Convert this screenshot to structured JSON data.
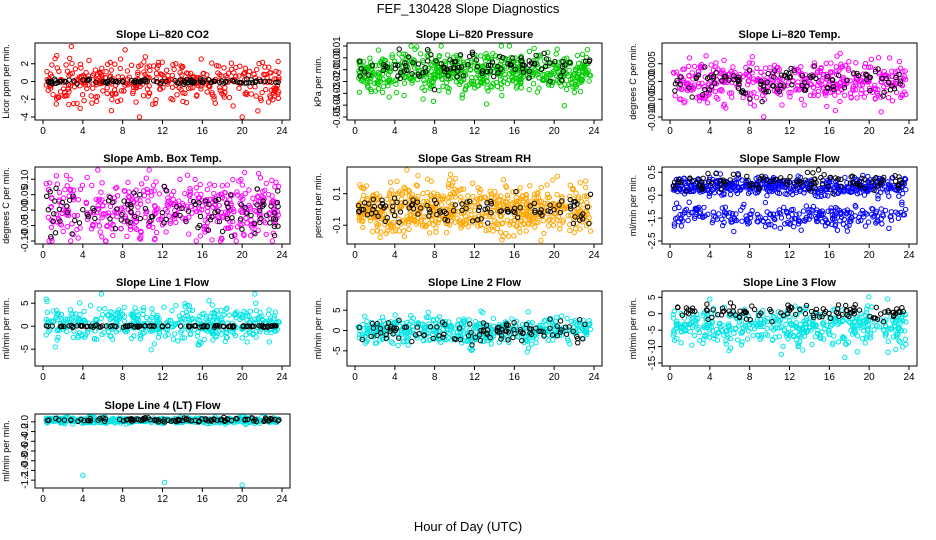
{
  "figure": {
    "title": "FEF_130428  Slope Diagnostics",
    "xlabel": "Hour of Day (UTC)"
  },
  "colors": {
    "black": "#000000",
    "red": "#ff0000",
    "green": "#00cc00",
    "magenta": "#ff00ff",
    "orange": "#ffa500",
    "blue": "#0000ff",
    "cyan": "#00e5e5"
  },
  "chart_data": [
    {
      "type": "scatter",
      "title": "Slope Li–820 CO2",
      "ylabel": "Licor ppm per min.",
      "xlim": [
        0,
        24
      ],
      "ylim": [
        -4,
        4
      ],
      "xticks": [
        "0",
        "4",
        "8",
        "12",
        "16",
        "20",
        "24"
      ],
      "yticks": [
        "-4",
        "-2",
        "0",
        "2"
      ],
      "series": [
        {
          "color": "red",
          "center": 0.0,
          "spread": 1.2,
          "count": 380
        },
        {
          "color": "black",
          "center": 0.0,
          "spread": 0.12,
          "count": 110
        }
      ]
    },
    {
      "type": "scatter",
      "title": "Slope Li–820 Pressure",
      "ylabel": "kPa per min.",
      "xlim": [
        0,
        24
      ],
      "ylim": [
        -0.05,
        0.01
      ],
      "xticks": [
        "0",
        "4",
        "8",
        "12",
        "16",
        "20",
        "24"
      ],
      "yticks": [
        "-0.05",
        "-0.04",
        "-0.03",
        "-0.02",
        "-0.01",
        "0.00",
        "0.01"
      ],
      "series": [
        {
          "color": "green",
          "center": -0.012,
          "spread": 0.009,
          "count": 600
        },
        {
          "color": "black",
          "center": -0.008,
          "spread": 0.006,
          "count": 110
        }
      ]
    },
    {
      "type": "scatter",
      "title": "Slope Li–820 Temp.",
      "ylabel": "degrees C per min.",
      "xlim": [
        0,
        24
      ],
      "ylim": [
        -0.01,
        0.01
      ],
      "xticks": [
        "0",
        "4",
        "8",
        "12",
        "16",
        "20",
        "24"
      ],
      "yticks": [
        "-0.010",
        "-0.005",
        "0.000",
        "0.005"
      ],
      "series": [
        {
          "color": "magenta",
          "center": 0.0,
          "spread": 0.003,
          "count": 450
        },
        {
          "color": "black",
          "center": 0.0,
          "spread": 0.002,
          "count": 110
        }
      ]
    },
    {
      "type": "scatter",
      "title": "Slope Amb. Box Temp.",
      "ylabel": "degrees C per min.",
      "xlim": [
        0,
        24
      ],
      "ylim": [
        -0.1,
        0.13
      ],
      "xticks": [
        "0",
        "4",
        "8",
        "12",
        "16",
        "20",
        "24"
      ],
      "yticks": [
        "-0.10",
        "-0.05",
        "0.00",
        "0.05",
        "0.10"
      ],
      "series": [
        {
          "color": "magenta",
          "center": 0.0,
          "spread": 0.05,
          "count": 450
        },
        {
          "color": "black",
          "center": 0.0,
          "spread": 0.035,
          "count": 110
        }
      ]
    },
    {
      "type": "scatter",
      "title": "Slope Gas Stream RH",
      "ylabel": "percent per min.",
      "xlim": [
        0,
        24
      ],
      "ylim": [
        -0.2,
        0.25
      ],
      "xticks": [
        "0",
        "4",
        "8",
        "12",
        "16",
        "20",
        "24"
      ],
      "yticks": [
        "-0.1",
        "0.1"
      ],
      "series": [
        {
          "color": "orange",
          "center": 0.0,
          "spread": 0.08,
          "count": 650
        },
        {
          "color": "black",
          "center": 0.0,
          "spread": 0.04,
          "count": 110
        }
      ]
    },
    {
      "type": "scatter",
      "title": "Slope Sample Flow",
      "ylabel": "ml/min per min.",
      "xlim": [
        0,
        24
      ],
      "ylim": [
        -2.5,
        0.6
      ],
      "xticks": [
        "0",
        "4",
        "8",
        "12",
        "16",
        "20",
        "24"
      ],
      "yticks": [
        "-2.5",
        "-1.5",
        "-0.5",
        "0.5"
      ],
      "series": [
        {
          "color": "blue",
          "center": -0.1,
          "spread": 0.2,
          "count": 450
        },
        {
          "color": "blue",
          "center": -1.4,
          "spread": 0.25,
          "count": 250
        },
        {
          "color": "black",
          "center": 0.1,
          "spread": 0.2,
          "count": 110
        }
      ]
    },
    {
      "type": "scatter",
      "title": "Slope Line 1 Flow",
      "ylabel": "ml/min per min.",
      "xlim": [
        0,
        24
      ],
      "ylim": [
        -8,
        7
      ],
      "xticks": [
        "0",
        "4",
        "8",
        "12",
        "16",
        "20",
        "24"
      ],
      "yticks": [
        "-5",
        "0",
        "5"
      ],
      "series": [
        {
          "color": "cyan",
          "center": 0.5,
          "spread": 1.8,
          "count": 450
        },
        {
          "color": "black",
          "center": 0.0,
          "spread": 0.1,
          "count": 110
        }
      ]
    },
    {
      "type": "scatter",
      "title": "Slope Line 2 Flow",
      "ylabel": "ml/min per min.",
      "xlim": [
        0,
        24
      ],
      "ylim": [
        -8,
        9
      ],
      "xticks": [
        "0",
        "4",
        "8",
        "12",
        "16",
        "20",
        "24"
      ],
      "yticks": [
        "-5",
        "0",
        "5"
      ],
      "series": [
        {
          "color": "cyan",
          "center": 0.0,
          "spread": 1.6,
          "count": 450
        },
        {
          "color": "black",
          "center": 0.0,
          "spread": 1.6,
          "count": 110
        }
      ]
    },
    {
      "type": "scatter",
      "title": "Slope Line 3 Flow",
      "ylabel": "ml/min per min.",
      "xlim": [
        0,
        24
      ],
      "ylim": [
        -15,
        6
      ],
      "xticks": [
        "0",
        "4",
        "8",
        "12",
        "16",
        "20",
        "24"
      ],
      "yticks": [
        "-15",
        "-10",
        "-5",
        "0",
        "5"
      ],
      "series": [
        {
          "color": "cyan",
          "center": -4.0,
          "spread": 3.0,
          "count": 450
        },
        {
          "color": "black",
          "center": 0.5,
          "spread": 1.2,
          "count": 110
        }
      ]
    },
    {
      "type": "scatter",
      "title": "Slope Line 4 (LT) Flow",
      "ylabel": "ml/min per min.",
      "xlim": [
        0,
        24
      ],
      "ylim": [
        -1.3,
        0.1
      ],
      "xticks": [
        "0",
        "4",
        "8",
        "12",
        "16",
        "20",
        "24"
      ],
      "yticks": [
        "-1.2",
        "-1.0",
        "-0.8",
        "-0.6",
        "-0.4",
        "-0.2",
        "0.0"
      ],
      "series": [
        {
          "color": "cyan",
          "center": 0.03,
          "spread": 0.03,
          "count": 450
        },
        {
          "color": "black",
          "center": 0.04,
          "spread": 0.02,
          "count": 110
        }
      ],
      "outliers": [
        {
          "color": "cyan",
          "x": 4.0,
          "y": -1.1
        },
        {
          "color": "cyan",
          "x": 12.2,
          "y": -1.25
        },
        {
          "color": "cyan",
          "x": 20.0,
          "y": -1.3
        }
      ]
    }
  ]
}
